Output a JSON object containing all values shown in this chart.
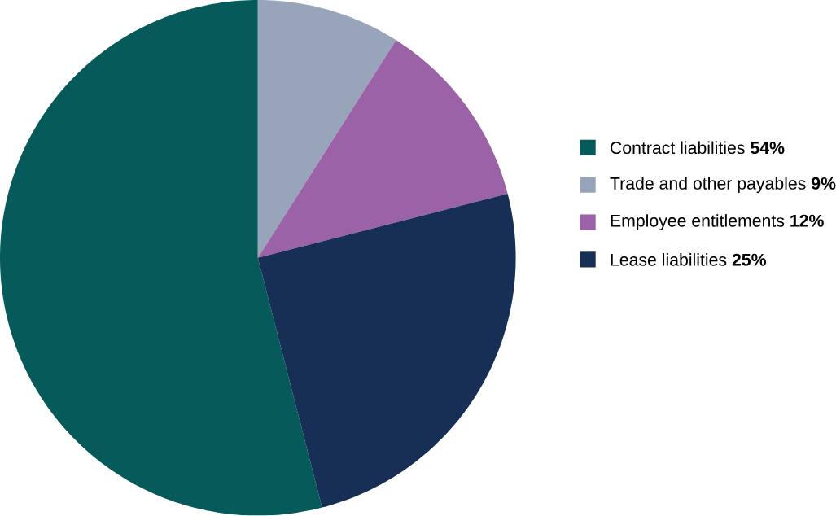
{
  "chart_data": {
    "type": "pie",
    "categories": [
      "Contract liabilities **54%**",
      "Trade and other payables **9%**",
      "Employee entitlements **12%**",
      "Lease liabilities **25%**"
    ],
    "values": [
      54,
      9,
      12,
      25
    ],
    "colors": [
      "#065a5a",
      "#97a4ba",
      "#9c62a8",
      "#172f55"
    ],
    "legend": "right"
  }
}
